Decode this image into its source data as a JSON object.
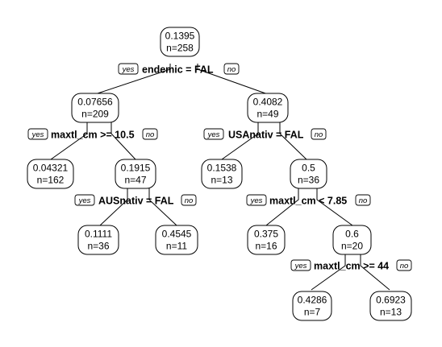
{
  "tree": {
    "nodes": [
      {
        "id": "n-root",
        "value": "0.1395",
        "n": "n=258"
      },
      {
        "id": "n-l",
        "value": "0.07656",
        "n": "n=209"
      },
      {
        "id": "n-r",
        "value": "0.4082",
        "n": "n=49"
      },
      {
        "id": "n-ll",
        "value": "0.04321",
        "n": "n=162"
      },
      {
        "id": "n-lr",
        "value": "0.1915",
        "n": "n=47"
      },
      {
        "id": "n-lrl",
        "value": "0.1111",
        "n": "n=36"
      },
      {
        "id": "n-lrr",
        "value": "0.4545",
        "n": "n=11"
      },
      {
        "id": "n-rl",
        "value": "0.1538",
        "n": "n=13"
      },
      {
        "id": "n-rr",
        "value": "0.5",
        "n": "n=36"
      },
      {
        "id": "n-rrl",
        "value": "0.375",
        "n": "n=16"
      },
      {
        "id": "n-rrr",
        "value": "0.6",
        "n": "n=20"
      },
      {
        "id": "n-rrrl",
        "value": "0.4286",
        "n": "n=7"
      },
      {
        "id": "n-rrrr",
        "value": "0.6923",
        "n": "n=13"
      }
    ],
    "splits": [
      {
        "id": "s-root",
        "label": "endemic = FAL"
      },
      {
        "id": "s-l",
        "label": "maxtl_cm >= 10.5"
      },
      {
        "id": "s-r",
        "label": "USAnativ = FAL"
      },
      {
        "id": "s-lr",
        "label": "AUSnativ = FAL"
      },
      {
        "id": "s-rr",
        "label": "maxtl_cm < 7.85"
      },
      {
        "id": "s-rrr",
        "label": "maxtl_cm >= 44"
      }
    ],
    "yes_label": "yes",
    "no_label": "no"
  }
}
